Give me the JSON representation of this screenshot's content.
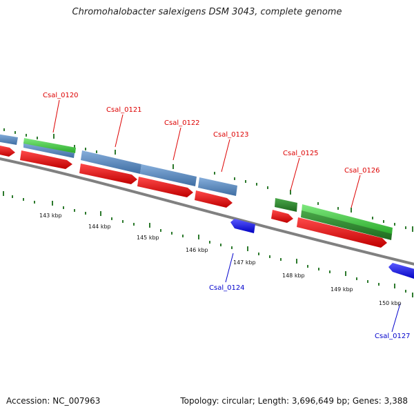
{
  "title": "Chromohalobacter salexigens DSM 3043, complete genome",
  "footer": {
    "accession": "Accession: NC_007963",
    "summary": "Topology: circular; Length: 3,696,649 bp; Genes: 3,388"
  },
  "colors": {
    "backbone": "#808080",
    "tick": "#2d7a2d",
    "label_forward": "#dd0000",
    "label_reverse": "#0000cc",
    "cds_red": "#ee1111",
    "gene_steelblue": "#5a8ac0",
    "gene_green_light": "#44cc44",
    "gene_green_dark": "#2a8a2a",
    "gene_blue": "#1a1aee"
  },
  "scale_labels": [
    "143 kbp",
    "144 kbp",
    "145 kbp",
    "146 kbp",
    "147 kbp",
    "148 kbp",
    "149 kbp",
    "150 kbp"
  ],
  "gene_labels": [
    {
      "id": "Csal_0120",
      "strand": "forward"
    },
    {
      "id": "Csal_0121",
      "strand": "forward"
    },
    {
      "id": "Csal_0122",
      "strand": "forward"
    },
    {
      "id": "Csal_0123",
      "strand": "forward"
    },
    {
      "id": "Csal_0125",
      "strand": "forward"
    },
    {
      "id": "Csal_0126",
      "strand": "forward"
    },
    {
      "id": "Csal_0124",
      "strand": "reverse"
    },
    {
      "id": "Csal_0127",
      "strand": "reverse"
    }
  ]
}
